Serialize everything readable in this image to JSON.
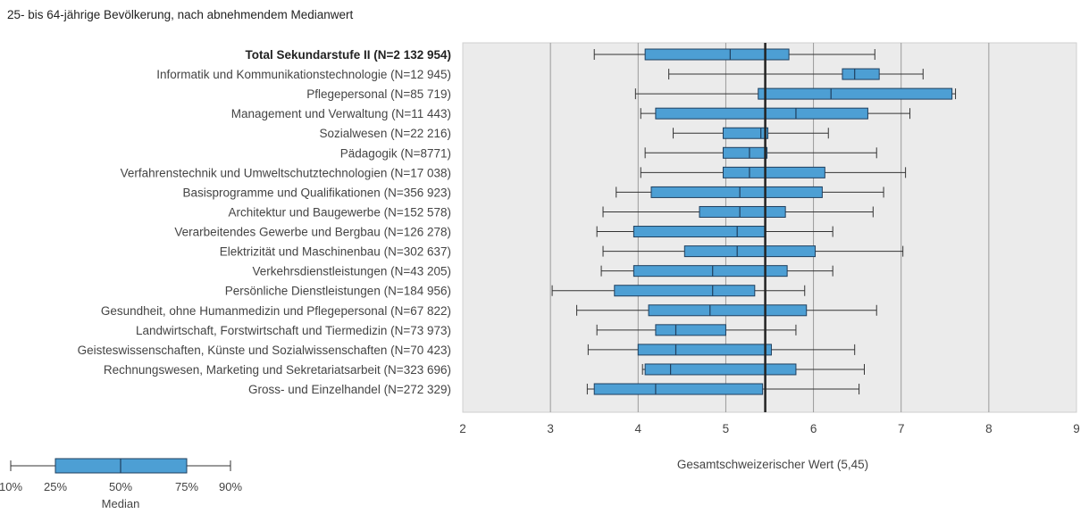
{
  "subtitle": "25- bis 64-jährige Bevölkerung, nach abnehmendem Medianwert",
  "colors": {
    "box_fill": "#4d9fd4",
    "box_stroke": "#1f3f5e",
    "plot_bg": "#ebebeb",
    "grid": "#9a9a9a",
    "reference_line": "#222222"
  },
  "chart_data": {
    "type": "boxplot",
    "orientation": "horizontal",
    "xlim": [
      2,
      9
    ],
    "x_ticks": [
      2,
      3,
      4,
      5,
      6,
      7,
      8,
      9
    ],
    "grid": true,
    "reference_line": {
      "value": 5.45,
      "label": "Gesamtschweizerischer Wert (5,45)"
    },
    "rows": [
      {
        "label": "Total Sekundarstufe II (N=2 132 954)",
        "bold": true,
        "p10": 3.5,
        "p25": 4.08,
        "median": 5.05,
        "p75": 5.72,
        "p90": 6.7
      },
      {
        "label": "Informatik und Kommunikationstechnologie (N=12 945)",
        "p10": 4.35,
        "p25": 6.33,
        "median": 6.47,
        "p75": 6.75,
        "p90": 7.25
      },
      {
        "label": "Pflegepersonal (N=85 719)",
        "p10": 3.97,
        "p25": 5.37,
        "median": 6.2,
        "p75": 7.58,
        "p90": 7.62
      },
      {
        "label": "Management und Verwaltung (N=11 443)",
        "p10": 4.03,
        "p25": 4.2,
        "median": 5.8,
        "p75": 6.62,
        "p90": 7.1
      },
      {
        "label": "Sozialwesen (N=22 216)",
        "p10": 4.4,
        "p25": 4.97,
        "median": 5.4,
        "p75": 5.48,
        "p90": 6.17
      },
      {
        "label": "Pädagogik (N=8771)",
        "p10": 4.08,
        "p25": 4.97,
        "median": 5.27,
        "p75": 5.47,
        "p90": 6.72
      },
      {
        "label": "Verfahrenstechnik und Umweltschutztechnologien (N=17 038)",
        "p10": 4.03,
        "p25": 4.97,
        "median": 5.27,
        "p75": 6.13,
        "p90": 7.05
      },
      {
        "label": "Basisprogramme und Qualifikationen (N=356 923)",
        "p10": 3.75,
        "p25": 4.15,
        "median": 5.16,
        "p75": 6.1,
        "p90": 6.8
      },
      {
        "label": "Architektur und Baugewerbe (N=152 578)",
        "p10": 3.6,
        "p25": 4.7,
        "median": 5.16,
        "p75": 5.68,
        "p90": 6.68
      },
      {
        "label": "Verarbeitendes Gewerbe und Bergbau (N=126 278)",
        "p10": 3.53,
        "p25": 3.95,
        "median": 5.13,
        "p75": 5.45,
        "p90": 6.22
      },
      {
        "label": "Elektrizität und Maschinenbau (N=302 637)",
        "p10": 3.6,
        "p25": 4.53,
        "median": 5.13,
        "p75": 6.02,
        "p90": 7.02
      },
      {
        "label": "Verkehrsdienstleistungen (N=43 205)",
        "p10": 3.58,
        "p25": 3.95,
        "median": 4.85,
        "p75": 5.7,
        "p90": 6.22
      },
      {
        "label": "Persönliche Dienstleistungen (N=184 956)",
        "p10": 3.02,
        "p25": 3.73,
        "median": 4.85,
        "p75": 5.33,
        "p90": 5.9
      },
      {
        "label": "Gesundheit, ohne Humanmedizin und Pflegepersonal (N=67 822)",
        "p10": 3.3,
        "p25": 4.12,
        "median": 4.82,
        "p75": 5.92,
        "p90": 6.72
      },
      {
        "label": "Landwirtschaft, Forstwirtschaft und Tiermedizin (N=73 973)",
        "p10": 3.53,
        "p25": 4.2,
        "median": 4.43,
        "p75": 5.0,
        "p90": 5.8
      },
      {
        "label": "Geisteswissenschaften, Künste und Sozialwissenschaften (N=70 423)",
        "p10": 3.43,
        "p25": 4.0,
        "median": 4.43,
        "p75": 5.52,
        "p90": 6.47
      },
      {
        "label": "Rechnungswesen, Marketing und Sekretariatsarbeit (N=323 696)",
        "p10": 4.05,
        "p25": 4.08,
        "median": 4.37,
        "p75": 5.8,
        "p90": 6.58
      },
      {
        "label": "Gross- und Einzelhandel (N=272 329)",
        "p10": 3.42,
        "p25": 3.5,
        "median": 4.2,
        "p75": 5.42,
        "p90": 6.52
      }
    ]
  },
  "legend": {
    "labels": [
      "10%",
      "25%",
      "50%",
      "75%",
      "90%"
    ],
    "median_label": "Median"
  }
}
